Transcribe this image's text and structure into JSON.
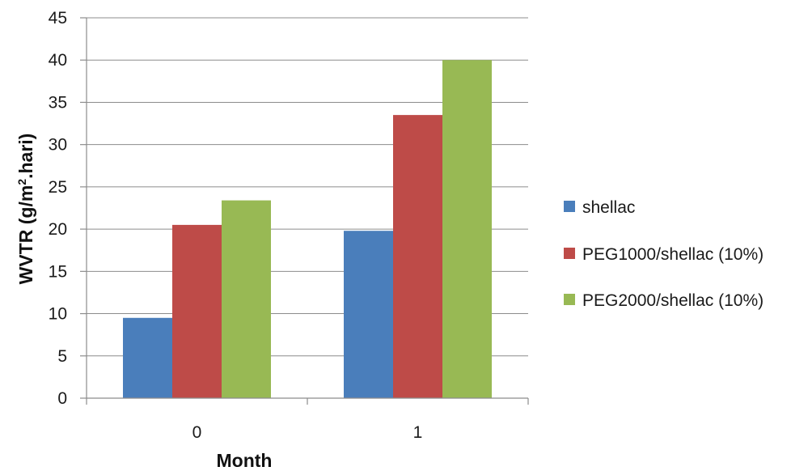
{
  "chart_data": {
    "type": "bar",
    "categories": [
      "0",
      "1"
    ],
    "series": [
      {
        "name": "shellac",
        "values": [
          9.5,
          19.8
        ],
        "color": "#4A7EBB"
      },
      {
        "name": "PEG1000/shellac (10%)",
        "values": [
          20.5,
          33.5
        ],
        "color": "#BE4B48"
      },
      {
        "name": "PEG2000/shellac (10%)",
        "values": [
          23.4,
          40.0
        ],
        "color": "#98B954"
      }
    ],
    "xlabel": "Month",
    "ylabel_main": "WVTR (g/m",
    "ylabel_sup": "2",
    "ylabel_tail": ".hari)",
    "ylim": [
      0,
      45
    ],
    "yticks": [
      "0",
      "5",
      "10",
      "15",
      "20",
      "25",
      "30",
      "35",
      "40",
      "45"
    ],
    "grid": true,
    "legend_position": "right"
  }
}
